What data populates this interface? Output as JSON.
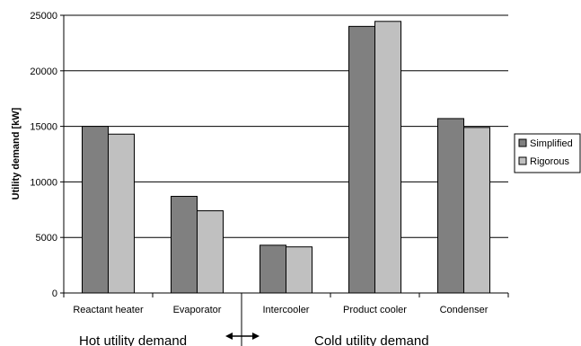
{
  "chart_data": {
    "type": "bar",
    "title": "",
    "xlabel": "",
    "ylabel": "Utility demand [kW]",
    "ylim": [
      0,
      25000
    ],
    "yticks": [
      0,
      5000,
      10000,
      15000,
      20000,
      25000
    ],
    "grid": "horizontal",
    "legend_position": "right",
    "categories": [
      "Reactant heater",
      "Evaporator",
      "Intercooler",
      "Product cooler",
      "Condenser"
    ],
    "series": [
      {
        "name": "Simplified",
        "color": "#808080",
        "values": [
          15000,
          8700,
          4300,
          24000,
          15700
        ]
      },
      {
        "name": "Rigorous",
        "color": "#c0c0c0",
        "values": [
          14300,
          7400,
          4150,
          24450,
          14900
        ]
      }
    ],
    "annotations": {
      "hot_label": "Hot utility demand",
      "cold_label": "Cold utility demand",
      "divider_icon": "double-arrow-icon"
    }
  }
}
